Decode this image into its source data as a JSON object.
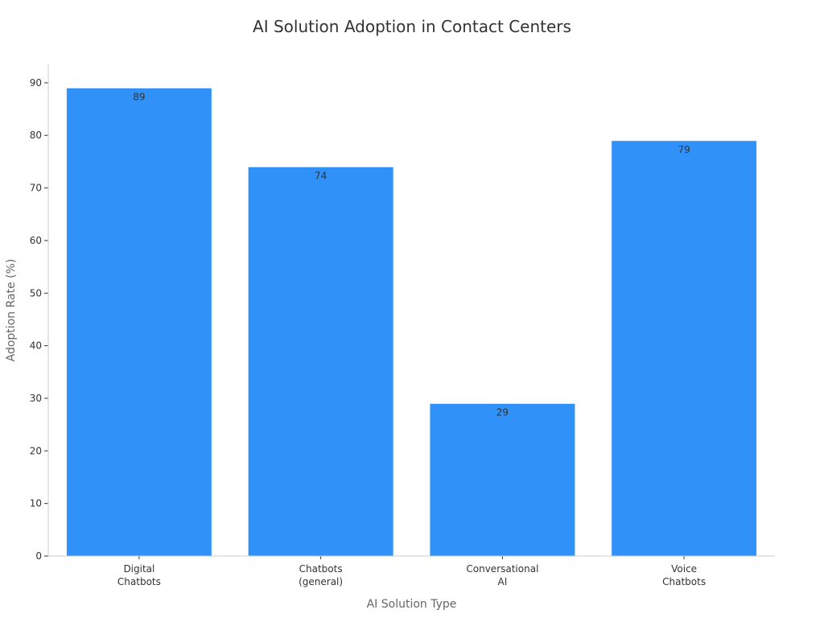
{
  "chart_data": {
    "type": "bar",
    "title": "AI Solution Adoption in Contact Centers",
    "xlabel": "AI Solution Type",
    "ylabel": "Adoption Rate (%)",
    "categories": [
      [
        "Digital",
        "Chatbots"
      ],
      [
        "Chatbots",
        "(general)"
      ],
      [
        "Conversational",
        "AI"
      ],
      [
        "Voice",
        "Chatbots"
      ]
    ],
    "values": [
      89,
      74,
      29,
      79
    ],
    "data_labels": [
      "89",
      "74",
      "29",
      "79"
    ],
    "ylim": [
      0,
      93.5
    ],
    "yticks": [
      0,
      10,
      20,
      30,
      40,
      50,
      60,
      70,
      80,
      90
    ],
    "grid": false,
    "legend": "none",
    "colors": {
      "bar": "#3092F8",
      "axis": "#cccccc",
      "text": "#333333",
      "axis_title": "#666666"
    }
  }
}
